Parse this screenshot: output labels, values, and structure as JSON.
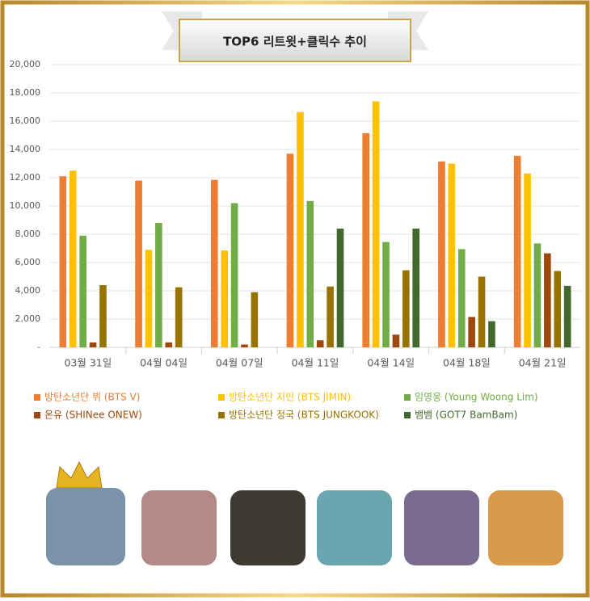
{
  "chart_data": {
    "type": "bar",
    "title": "TOP6 리트윗+클릭수 추이",
    "categories": [
      "03월 31일",
      "04월 04일",
      "04월 07일",
      "04월 11일",
      "04월 14일",
      "04월 18일",
      "04월 21일"
    ],
    "series": [
      {
        "name": "방탄소년단 뷔 (BTS V)",
        "color": "#ED7D31",
        "values": [
          12100,
          11800,
          11850,
          13700,
          15150,
          13150,
          13550
        ]
      },
      {
        "name": "방탄소년단 지민 (BTS JIMIN)",
        "color": "#FFC000",
        "values": [
          12500,
          6900,
          6850,
          16650,
          17400,
          13000,
          12300
        ]
      },
      {
        "name": "임영웅 (Young Woong Lim)",
        "color": "#70AD47",
        "values": [
          7900,
          8800,
          10200,
          10350,
          7450,
          6950,
          7350
        ]
      },
      {
        "name": "온유 (SHINee ONEW)",
        "color": "#9E480E",
        "values": [
          350,
          350,
          200,
          500,
          900,
          2150,
          6650
        ]
      },
      {
        "name": "방탄소년단 정국 (BTS JUNGKOOK)",
        "color": "#997300",
        "values": [
          4400,
          4250,
          3900,
          4300,
          5450,
          5000,
          5400
        ]
      },
      {
        "name": "뱀뱀 (GOT7 BamBam)",
        "color": "#43682B",
        "values": [
          0,
          0,
          0,
          8400,
          8400,
          1850,
          4350
        ]
      }
    ],
    "ylim": [
      0,
      20000
    ],
    "yticks": [
      {
        "value": 0,
        "label": "-"
      },
      {
        "value": 2000,
        "label": "2,000"
      },
      {
        "value": 4000,
        "label": "4,000"
      },
      {
        "value": 6000,
        "label": "6,000"
      },
      {
        "value": 8000,
        "label": "8,000"
      },
      {
        "value": 10000,
        "label": "10,000"
      },
      {
        "value": 12000,
        "label": "12,000"
      },
      {
        "value": 14000,
        "label": "14,000"
      },
      {
        "value": 16000,
        "label": "16,000"
      },
      {
        "value": 18000,
        "label": "18,000"
      },
      {
        "value": 20000,
        "label": "20,000"
      }
    ],
    "grid": true
  }
}
